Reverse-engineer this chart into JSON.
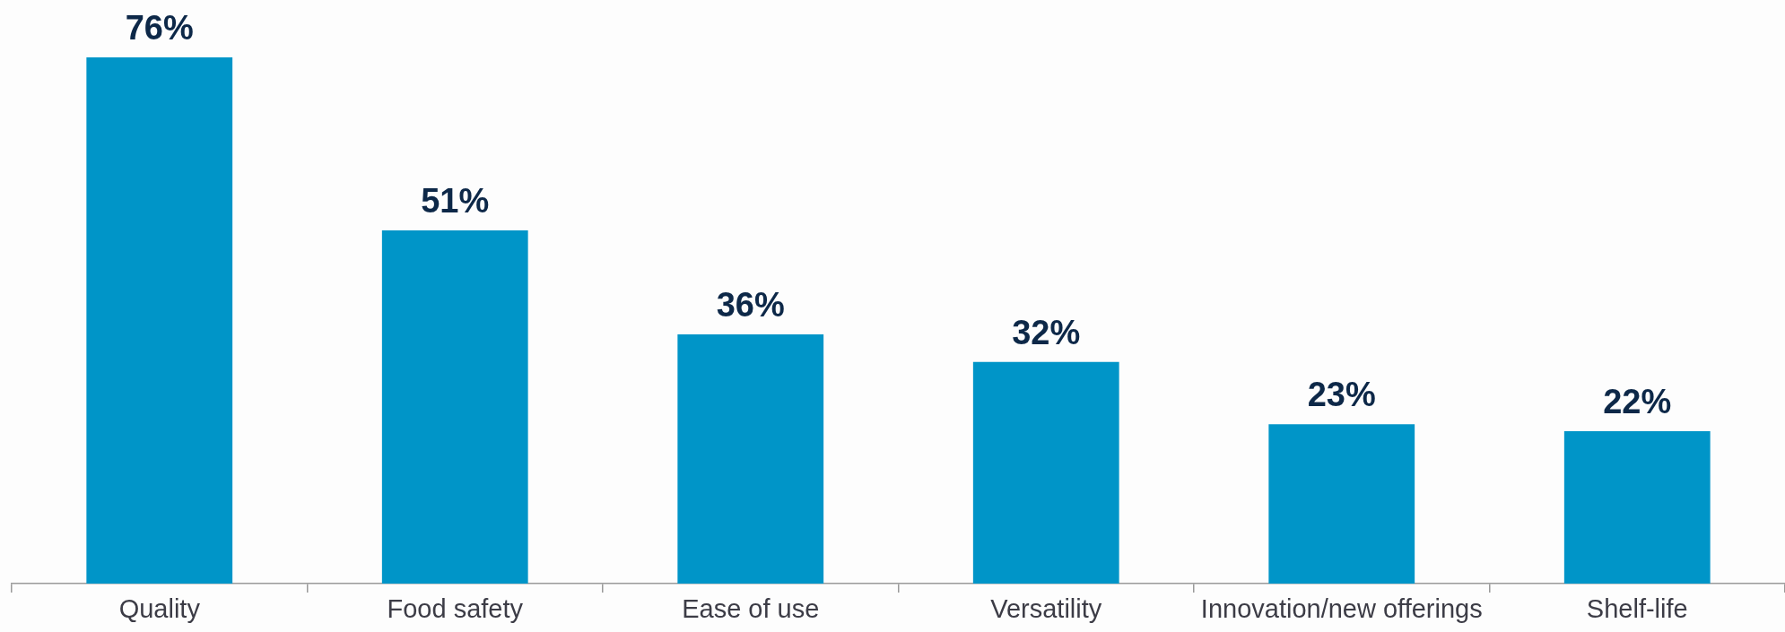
{
  "chart_data": {
    "type": "bar",
    "categories": [
      "Quality",
      "Food safety",
      "Ease of use",
      "Versatility",
      "Innovation/new offerings",
      "Shelf-life"
    ],
    "values": [
      76,
      51,
      36,
      32,
      23,
      22
    ],
    "color": "#0095c8",
    "value_labels": [
      "76%",
      "51%",
      "36%",
      "32%",
      "23%",
      "22%"
    ]
  }
}
